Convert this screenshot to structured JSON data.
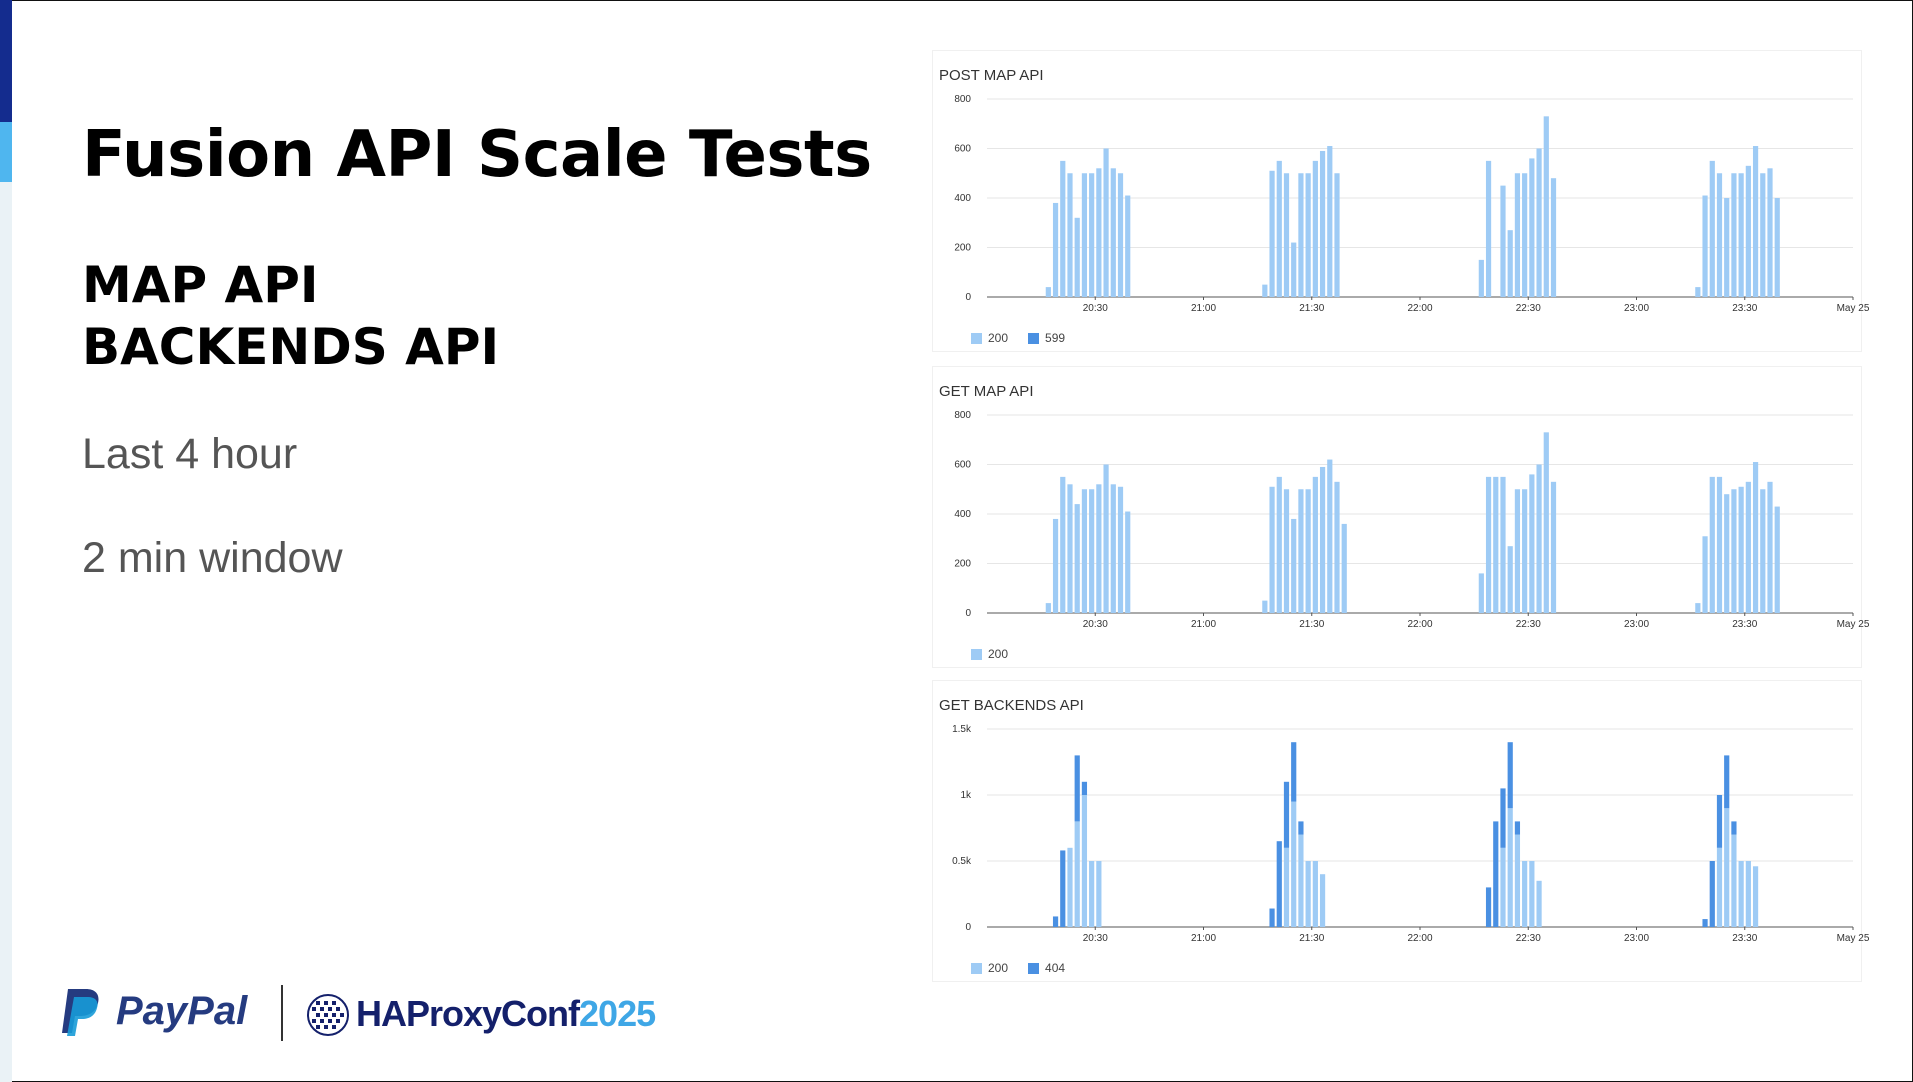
{
  "slide": {
    "title": "Fusion API Scale Tests",
    "subtitle_lines": [
      "MAP API",
      "BACKENDS API"
    ],
    "notes": [
      "Last 4 hour",
      "2 min window"
    ],
    "logos": {
      "paypal": "PayPal",
      "haproxy": "HAProxyConf",
      "haproxy_year": "2025"
    }
  },
  "colors": {
    "status_200": "#9ecbf5",
    "status_599": "#4a90e2",
    "status_404": "#4a90e2",
    "accent_dark": "#142c8e",
    "accent_light": "#4fb6ef"
  },
  "chart_data": [
    {
      "type": "bar",
      "title": "POST MAP API",
      "x_tick_labels": [
        "20:30",
        "21:00",
        "21:30",
        "22:00",
        "22:30",
        "23:00",
        "23:30",
        "May 25"
      ],
      "y_tick_labels": [
        "0",
        "200",
        "400",
        "600",
        "800"
      ],
      "ylim": [
        0,
        800
      ],
      "grid": true,
      "stacked": true,
      "legend_position": "bottom-left",
      "series": [
        {
          "name": "200",
          "color": "#9ecbf5",
          "values": [
            40,
            380,
            550,
            500,
            320,
            500,
            500,
            520,
            600,
            520,
            500,
            410,
            50,
            510,
            550,
            500,
            220,
            500,
            500,
            550,
            590,
            610,
            500,
            150,
            550,
            0,
            450,
            270,
            500,
            500,
            560,
            600,
            730,
            480,
            40,
            410,
            550,
            500,
            400,
            500,
            500,
            530,
            610,
            500,
            520,
            400
          ]
        },
        {
          "name": "599",
          "color": "#4a90e2",
          "values": []
        }
      ],
      "bucket_times": [
        "20:17",
        "20:19",
        "20:21",
        "20:23",
        "20:25",
        "20:27",
        "20:29",
        "20:31",
        "20:33",
        "20:35",
        "20:37",
        "20:39",
        "21:17",
        "21:19",
        "21:21",
        "21:23",
        "21:25",
        "21:27",
        "21:29",
        "21:31",
        "21:33",
        "21:35",
        "21:37",
        "22:17",
        "22:19",
        "22:21",
        "22:23",
        "22:25",
        "22:27",
        "22:29",
        "22:31",
        "22:33",
        "22:35",
        "22:37",
        "23:17",
        "23:19",
        "23:21",
        "23:23",
        "23:25",
        "23:27",
        "23:29",
        "23:31",
        "23:33",
        "23:35",
        "23:37",
        "23:39"
      ]
    },
    {
      "type": "bar",
      "title": "GET MAP API",
      "x_tick_labels": [
        "20:30",
        "21:00",
        "21:30",
        "22:00",
        "22:30",
        "23:00",
        "23:30",
        "May 25"
      ],
      "y_tick_labels": [
        "0",
        "200",
        "400",
        "600",
        "800"
      ],
      "ylim": [
        0,
        800
      ],
      "grid": true,
      "stacked": true,
      "legend_position": "bottom-left",
      "series": [
        {
          "name": "200",
          "color": "#9ecbf5",
          "values": [
            40,
            380,
            550,
            520,
            440,
            500,
            500,
            520,
            600,
            520,
            510,
            410,
            50,
            510,
            550,
            500,
            380,
            500,
            500,
            550,
            590,
            620,
            530,
            360,
            160,
            550,
            550,
            550,
            270,
            500,
            500,
            560,
            600,
            730,
            530,
            40,
            310,
            550,
            550,
            480,
            500,
            510,
            530,
            610,
            500,
            530,
            430
          ]
        }
      ],
      "bucket_times": [
        "20:17",
        "20:19",
        "20:21",
        "20:23",
        "20:25",
        "20:27",
        "20:29",
        "20:31",
        "20:33",
        "20:35",
        "20:37",
        "20:39",
        "21:17",
        "21:19",
        "21:21",
        "21:23",
        "21:25",
        "21:27",
        "21:29",
        "21:31",
        "21:33",
        "21:35",
        "21:37",
        "21:39",
        "22:17",
        "22:19",
        "22:21",
        "22:23",
        "22:25",
        "22:27",
        "22:29",
        "22:31",
        "22:33",
        "22:35",
        "22:37",
        "23:17",
        "23:19",
        "23:21",
        "23:23",
        "23:25",
        "23:27",
        "23:29",
        "23:31",
        "23:33",
        "23:35",
        "23:37",
        "23:39"
      ]
    },
    {
      "type": "bar",
      "title": "GET BACKENDS API",
      "x_tick_labels": [
        "20:30",
        "21:00",
        "21:30",
        "22:00",
        "22:30",
        "23:00",
        "23:30",
        "May 25"
      ],
      "y_tick_labels": [
        "0",
        "0.5k",
        "1k",
        "1.5k"
      ],
      "ylim": [
        0,
        1500
      ],
      "grid": true,
      "stacked": true,
      "legend_position": "bottom-left",
      "series": [
        {
          "name": "200",
          "color": "#9ecbf5",
          "values": [
            0,
            0,
            600,
            800,
            1000,
            500,
            500,
            0,
            0,
            600,
            950,
            700,
            500,
            500,
            400,
            0,
            0,
            600,
            900,
            700,
            500,
            500,
            350,
            0,
            0,
            600,
            900,
            700,
            500,
            500,
            460
          ]
        },
        {
          "name": "404",
          "color": "#4a90e2",
          "values": [
            80,
            580,
            0,
            500,
            100,
            0,
            0,
            140,
            650,
            500,
            450,
            100,
            0,
            0,
            0,
            300,
            800,
            450,
            500,
            100,
            0,
            0,
            0,
            60,
            500,
            400,
            400,
            100,
            0,
            0,
            0
          ]
        }
      ],
      "bucket_times": [
        "20:19",
        "20:21",
        "20:23",
        "20:25",
        "20:27",
        "20:29",
        "20:31",
        "21:19",
        "21:21",
        "21:23",
        "21:25",
        "21:27",
        "21:29",
        "21:31",
        "21:33",
        "22:19",
        "22:21",
        "22:23",
        "22:25",
        "22:27",
        "22:29",
        "22:31",
        "22:33",
        "23:19",
        "23:21",
        "23:23",
        "23:25",
        "23:27",
        "23:29",
        "23:31",
        "23:33"
      ]
    }
  ]
}
